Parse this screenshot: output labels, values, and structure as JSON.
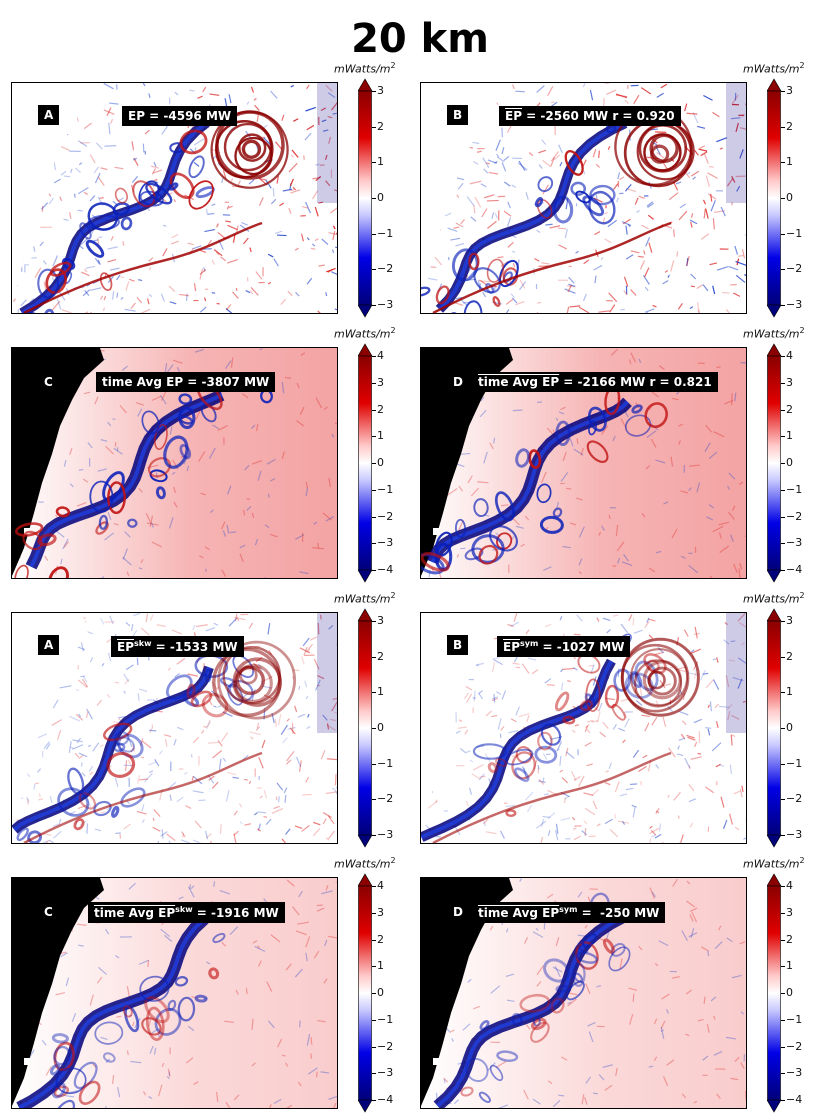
{
  "figure": {
    "title": "20 km"
  },
  "colormap": {
    "low": "#00007a",
    "mid": "#ffffff",
    "high": "#8b0000"
  },
  "chart_data": [
    {
      "type": "heatmap",
      "panel_letter": "A",
      "label": "EP = -4596 MW",
      "value_mw": -4596,
      "colorbar": {
        "unit": "mWatts/m",
        "unit_power": "2",
        "ticks": [
          "3",
          "2",
          "1",
          "0",
          "−1",
          "−2",
          "−3"
        ],
        "range": [
          -3,
          3
        ]
      }
    },
    {
      "type": "heatmap",
      "panel_letter": "B",
      "label_prefix": "EP",
      "label_rest": " = -2560 MW r = 0.920",
      "value_mw": -2560,
      "r": 0.92,
      "colorbar": {
        "unit": "mWatts/m",
        "unit_power": "2",
        "ticks": [
          "3",
          "2",
          "1",
          "0",
          "−1",
          "−2",
          "−3"
        ],
        "range": [
          -3,
          3
        ]
      }
    },
    {
      "type": "heatmap",
      "panel_letter": "C",
      "label": "time Avg EP = -3807 MW",
      "value_mw": -3807,
      "colorbar": {
        "unit": "mWatts/m",
        "unit_power": "2",
        "ticks": [
          "4",
          "3",
          "2",
          "1",
          "0",
          "−1",
          "−2",
          "−3",
          "−4"
        ],
        "range": [
          -4,
          4
        ]
      }
    },
    {
      "type": "heatmap",
      "panel_letter": "D",
      "label_prefix": "time Avg EP",
      "label_rest": " = -2166 MW r = 0.821",
      "value_mw": -2166,
      "r": 0.821,
      "colorbar": {
        "unit": "mWatts/m",
        "unit_power": "2",
        "ticks": [
          "4",
          "3",
          "2",
          "1",
          "0",
          "−1",
          "−2",
          "−3",
          "−4"
        ],
        "range": [
          -4,
          4
        ]
      }
    },
    {
      "type": "heatmap",
      "panel_letter": "A",
      "label_prefix": "EP",
      "label_sup": "skw",
      "label_rest": " = -1533 MW",
      "value_mw": -1533,
      "colorbar": {
        "unit": "mWatts/m",
        "unit_power": "2",
        "ticks": [
          "3",
          "2",
          "1",
          "0",
          "−1",
          "−2",
          "−3"
        ],
        "range": [
          -3,
          3
        ]
      }
    },
    {
      "type": "heatmap",
      "panel_letter": "B",
      "label_prefix": "EP",
      "label_sup": "sym",
      "label_rest": " = -1027 MW",
      "value_mw": -1027,
      "colorbar": {
        "unit": "mWatts/m",
        "unit_power": "2",
        "ticks": [
          "3",
          "2",
          "1",
          "0",
          "−1",
          "−2",
          "−3"
        ],
        "range": [
          -3,
          3
        ]
      }
    },
    {
      "type": "heatmap",
      "panel_letter": "C",
      "label_prefix": "time Avg EP",
      "label_sup": "skw",
      "label_rest": " = -1916 MW",
      "value_mw": -1916,
      "colorbar": {
        "unit": "mWatts/m",
        "unit_power": "2",
        "ticks": [
          "4",
          "3",
          "2",
          "1",
          "0",
          "−1",
          "−2",
          "−3",
          "−4"
        ],
        "range": [
          -4,
          4
        ]
      }
    },
    {
      "type": "heatmap",
      "panel_letter": "D",
      "label_prefix": "time Avg EP",
      "label_sup": "sym",
      "label_rest": " =  -250 MW",
      "value_mw": -250,
      "colorbar": {
        "unit": "mWatts/m",
        "unit_power": "2",
        "ticks": [
          "4",
          "3",
          "2",
          "1",
          "0",
          "−1",
          "−2",
          "−3",
          "−4"
        ],
        "range": [
          -4,
          4
        ]
      }
    }
  ]
}
